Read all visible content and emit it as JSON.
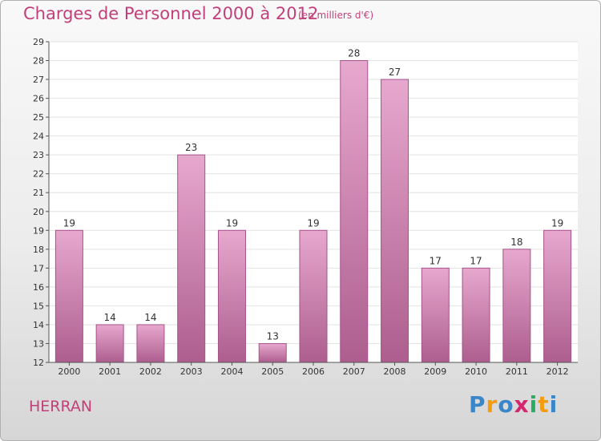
{
  "title": "Charges de Personnel 2000 à 2012",
  "subtitle": "(en milliers d'€)",
  "commune": "HERRAN",
  "logo": {
    "letters": [
      "P",
      "r",
      "o",
      "x",
      "i",
      "t",
      "i"
    ],
    "colors": [
      "#3a86c8",
      "#f39c12",
      "#3a86c8",
      "#d6246e",
      "#27ae60",
      "#f39c12",
      "#3a86c8"
    ]
  },
  "colors": {
    "bar": "#d890b8",
    "bar_edge": "#a6538a",
    "text": "#c2407a"
  },
  "chart_data": {
    "type": "bar",
    "categories": [
      "2000",
      "2001",
      "2002",
      "2003",
      "2004",
      "2005",
      "2006",
      "2007",
      "2008",
      "2009",
      "2010",
      "2011",
      "2012"
    ],
    "values": [
      19,
      14,
      14,
      23,
      19,
      13,
      19,
      28,
      27,
      17,
      17,
      18,
      19
    ],
    "ylim": [
      12,
      29
    ],
    "yticks": [
      12,
      13,
      14,
      15,
      16,
      17,
      18,
      19,
      20,
      21,
      22,
      23,
      24,
      25,
      26,
      27,
      28,
      29
    ],
    "grid": true
  }
}
